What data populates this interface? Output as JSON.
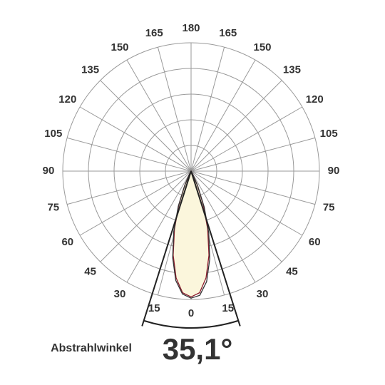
{
  "chart_data": {
    "type": "polar",
    "angle_ticks": [
      0,
      15,
      30,
      45,
      60,
      75,
      90,
      105,
      120,
      135,
      150,
      165,
      180
    ],
    "rlim": [
      0,
      1
    ],
    "rgrid": [
      0.2,
      0.4,
      0.6,
      0.8,
      1
    ],
    "fill": "#fbf6dc",
    "series": [
      {
        "color": "#8b1a2b",
        "x": [
          -28,
          -24,
          -20,
          -16,
          -12,
          -8,
          -4,
          0,
          4,
          8,
          12,
          16,
          20,
          24,
          28
        ],
        "values": [
          0.03,
          0.12,
          0.28,
          0.47,
          0.67,
          0.84,
          0.95,
          0.98,
          0.95,
          0.84,
          0.67,
          0.47,
          0.28,
          0.12,
          0.03
        ]
      },
      {
        "color": "#333333",
        "x": [
          -28,
          -24,
          -20,
          -16,
          -12,
          -8,
          -4,
          0,
          4,
          8,
          12,
          16,
          20,
          24,
          28
        ],
        "values": [
          0.03,
          0.12,
          0.29,
          0.49,
          0.69,
          0.86,
          0.96,
          0.99,
          0.97,
          0.87,
          0.7,
          0.5,
          0.3,
          0.13,
          0.03
        ]
      }
    ],
    "beam_label": "Abstrahlwinkel",
    "beam_angle": {
      "value": 35.1,
      "label": "35,1°"
    }
  }
}
